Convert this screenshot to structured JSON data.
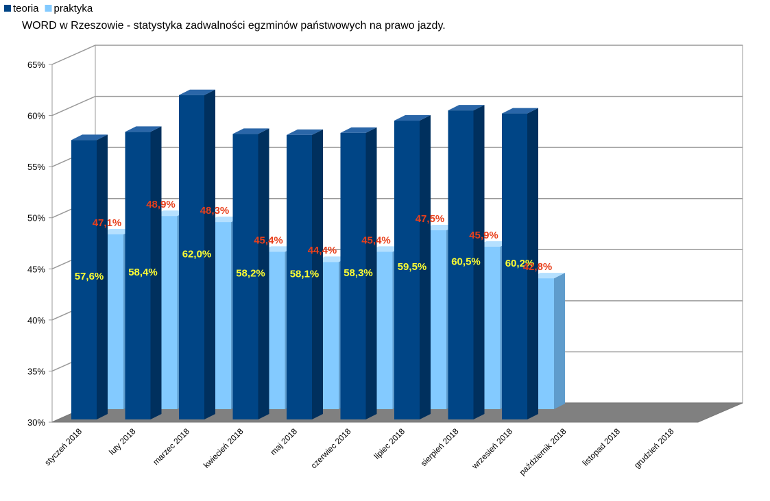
{
  "chart_data": {
    "type": "bar3d",
    "title": "WORD w Rzeszowie - statystyka zadwalności egzminów państwowych na prawo jazdy.",
    "categories": [
      "styczeń 2018",
      "luty 2018",
      "marzec 2018",
      "kwiecień 2018",
      "maj 2018",
      "czerwiec 2018",
      "lipiec 2018",
      "sierpień 2018",
      "wrzesień 2018",
      "październik 2018",
      "listopad 2018",
      "grudzień 2018"
    ],
    "series": [
      {
        "name": "teoria",
        "color": "#004586",
        "values": [
          57.6,
          58.4,
          62.0,
          58.2,
          58.1,
          58.3,
          59.5,
          60.5,
          60.2,
          null,
          null,
          null
        ],
        "value_labels": [
          "57,6%",
          "58,4%",
          "62,0%",
          "58,2%",
          "58,1%",
          "58,3%",
          "59,5%",
          "60,5%",
          "60,2%",
          null,
          null,
          null
        ]
      },
      {
        "name": "praktyka",
        "color": "#83caff",
        "values": [
          47.1,
          48.9,
          48.3,
          45.4,
          44.4,
          45.4,
          47.5,
          45.9,
          42.8,
          null,
          null,
          null
        ],
        "value_labels": [
          "47,1%",
          "48,9%",
          "48,3%",
          "45,4%",
          "44,4%",
          "45,4%",
          "47,5%",
          "45,9%",
          "42,8%",
          null,
          null,
          null
        ]
      }
    ],
    "ylim": [
      30,
      65
    ],
    "yticks": [
      {
        "value": 30,
        "label": "30%"
      },
      {
        "value": 35,
        "label": "35%"
      },
      {
        "value": 40,
        "label": "40%"
      },
      {
        "value": 45,
        "label": "45%"
      },
      {
        "value": 50,
        "label": "50%"
      },
      {
        "value": 55,
        "label": "55%"
      },
      {
        "value": 60,
        "label": "60%"
      },
      {
        "value": 65,
        "label": "65%"
      }
    ],
    "grid": true,
    "legend": "top-left"
  }
}
